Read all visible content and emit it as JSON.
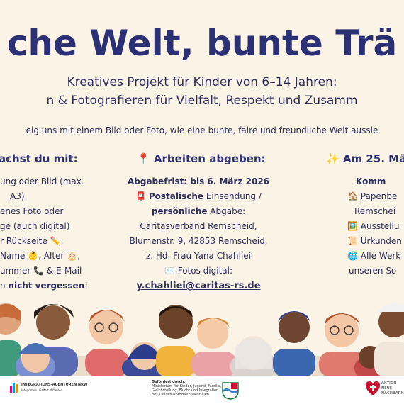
{
  "title": "che Welt, bunte Trä",
  "subtitle_1": "Kreatives Projekt für Kinder von 6–14 Jahren:",
  "subtitle_2": "n & Fotografieren für Vielfalt, Respekt und Zusamm",
  "tagline": "eig uns mit einem Bild oder Foto, wie eine bunte, faire und freundliche Welt aussie",
  "col_left": {
    "heading": "achst du mit:",
    "lines": [
      "ung oder Bild (max.",
      "A3)",
      "enes Foto oder",
      "ge (auch digital)",
      "r Rückseite ✏️:",
      "Name 👶, Alter 🎂,",
      "ummer 📞 & E-Mail"
    ],
    "last_prefix": "n ",
    "last_bold": "nicht vergessen",
    "last_suffix": "!"
  },
  "col_mid": {
    "heading": "📍 Arbeiten abgeben:",
    "deadline": "Abgabefrist: bis 6. März 2026",
    "line2_icon": "📮",
    "line2_bold": "Postalische",
    "line2_rest": " Einsendung /",
    "line3_bold": "persönliche",
    "line3_rest": " Abgabe:",
    "line4": "Caritasverband Remscheid,",
    "line5": "Blumenstr. 9, 42853 Remscheid,",
    "line6": "z. Hd. Frau Yana Chahliei",
    "line7": "✉️ Fotos digital:",
    "email": "y.chahliei@caritas-rs.de"
  },
  "col_right": {
    "heading": "✨ Am 25. Mär",
    "line1": "Komm",
    "lines": [
      "🏠 Papenbe",
      "Remschei",
      "🖼️ Ausstellu",
      "📜 Urkunden",
      "🌐 Alle Werk",
      "unseren So"
    ]
  },
  "footer": {
    "left_logo": "INTEGRATIONS-AGENTUREN NRW",
    "left_sub": "Integration. Vielfalt. Arbeiten.",
    "mid_label": "Gefördert durch:",
    "mid_lines": [
      "Ministerium für Kinder, Jugend, Familie,",
      "Gleichstellung, Flucht und Integration",
      "des Landes Nordrhein-Westfalen"
    ],
    "right_logo_lines": [
      "AKTION",
      "NEUE",
      "NACHBARN"
    ]
  },
  "colors": {
    "background": "#fbf3e6",
    "title": "#2b2f74",
    "text": "#2c2f5e",
    "accent_red": "#c8102e"
  }
}
